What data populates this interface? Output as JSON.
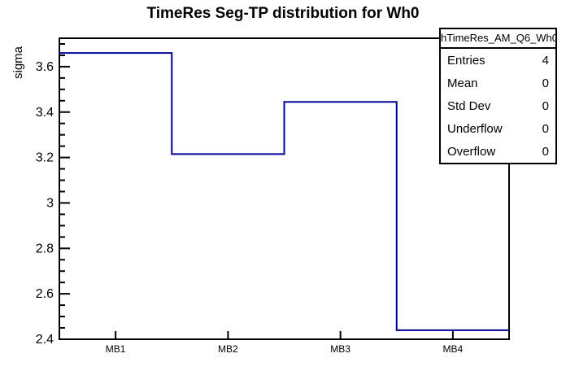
{
  "title": "TimeRes Seg-TP distribution for Wh0",
  "stats_box": {
    "title": "hTimeRes_AM_Q6_Wh0",
    "rows": [
      {
        "label": "Entries",
        "value": "4"
      },
      {
        "label": "Mean",
        "value": "0"
      },
      {
        "label": "Std Dev",
        "value": "0"
      },
      {
        "label": "Underflow",
        "value": "0"
      },
      {
        "label": "Overflow",
        "value": "0"
      }
    ]
  },
  "chart_data": {
    "type": "step-histogram",
    "title": "TimeRes Seg-TP distribution for Wh0",
    "categories": [
      "MB1",
      "MB2",
      "MB3",
      "MB4"
    ],
    "values": [
      3.66,
      3.215,
      3.445,
      2.44
    ],
    "xlabel": "",
    "ylabel": "sigma",
    "ylim": [
      2.4,
      3.725
    ],
    "y_major_step": 0.2,
    "y_minor_step": 0.05,
    "y_tick_labels": [
      "2.4",
      "2.6",
      "2.8",
      "3",
      "3.2",
      "3.4",
      "3.6"
    ],
    "line_color": "#000099",
    "axis_color": "#000000",
    "background_color": "#ffffff",
    "grid": false,
    "legend_position": "none"
  }
}
